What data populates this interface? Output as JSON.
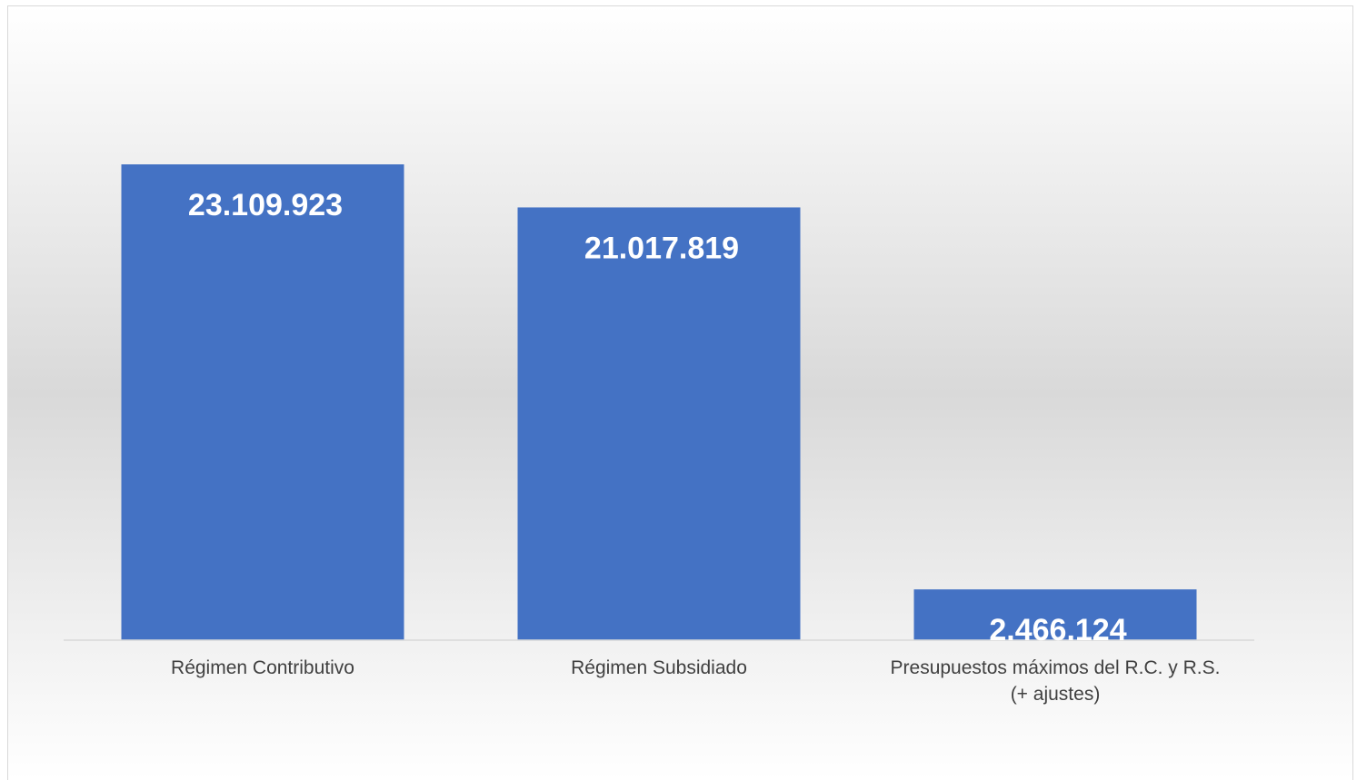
{
  "chart_data": {
    "type": "bar",
    "title": "",
    "xlabel": "",
    "ylabel": "",
    "categories": [
      [
        "Régimen Contributivo"
      ],
      [
        "Régimen Subsidiado"
      ],
      [
        "Presupuestos máximos del R.C. y R.S.",
        "(+ ajustes)"
      ]
    ],
    "values": [
      23109923,
      21017819,
      2466124
    ],
    "data_labels": [
      "23.109.923",
      "21.017.819",
      "2.466.124"
    ],
    "ylim": [
      0,
      23109923
    ],
    "grid": false,
    "legend": "none",
    "bar_color": "#4472c4"
  }
}
